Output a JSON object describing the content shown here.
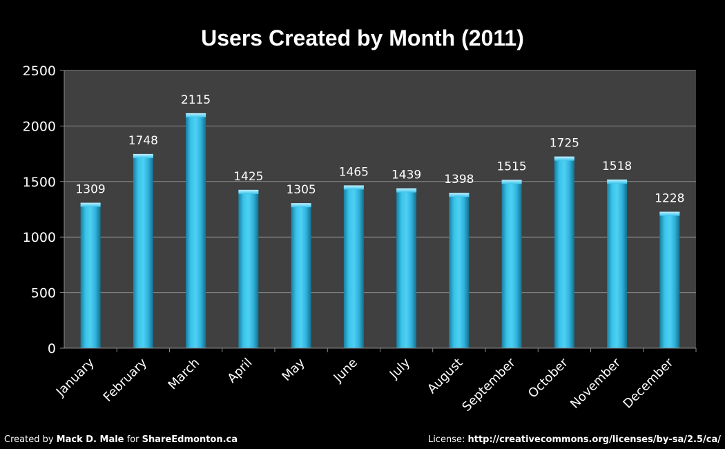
{
  "chart_data": {
    "type": "bar",
    "title": "Users Created by Month (2011)",
    "categories": [
      "January",
      "February",
      "March",
      "April",
      "May",
      "June",
      "July",
      "August",
      "September",
      "October",
      "November",
      "December"
    ],
    "values": [
      1309,
      1748,
      2115,
      1425,
      1305,
      1465,
      1439,
      1398,
      1515,
      1725,
      1518,
      1228
    ],
    "data_labels": [
      "1309",
      "1748",
      "2115",
      "1425",
      "1305",
      "1465",
      "1439",
      "1398",
      "1515",
      "1725",
      "1518",
      "1228"
    ],
    "ylim": [
      0,
      2500
    ],
    "yticks": [
      0,
      500,
      1000,
      1500,
      2000,
      2500
    ],
    "ytick_labels": [
      "0",
      "500",
      "1000",
      "1500",
      "2000",
      "2500"
    ],
    "xlabel": "",
    "ylabel": "",
    "grid": true,
    "legend": "none",
    "colors": {
      "background": "#000000",
      "plot_area": "#404040",
      "bar": "#2bb5dd",
      "gridline": "#8a8a8a",
      "text": "#ffffff"
    }
  },
  "footer": {
    "created_by_prefix": "Created by",
    "author": "Mack D. Male",
    "for_word": "for",
    "site": "ShareEdmonton.ca",
    "license_prefix": "License:",
    "license_url": "http://creativecommons.org/licenses/by-sa/2.5/ca/"
  }
}
